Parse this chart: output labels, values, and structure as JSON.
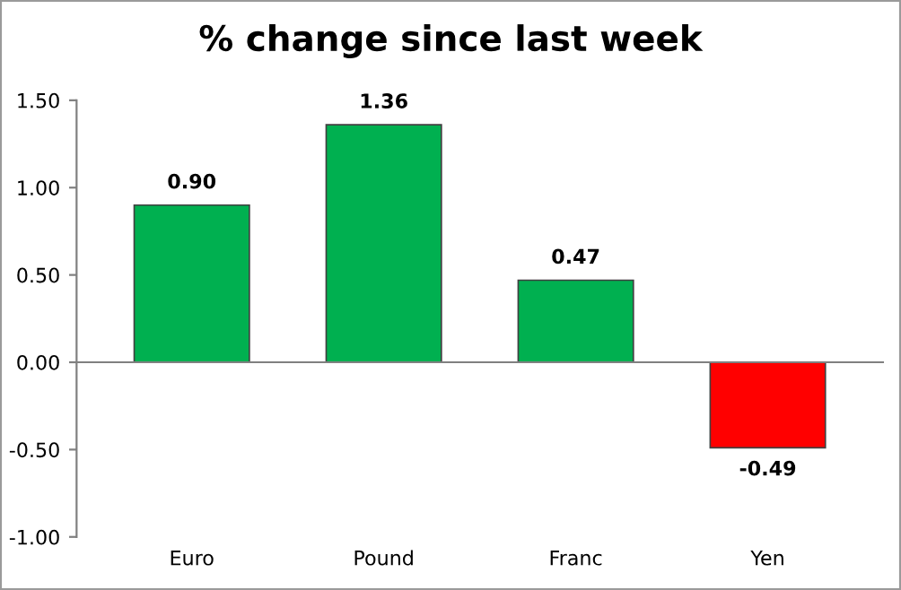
{
  "chart_data": {
    "type": "bar",
    "title": "% change since last week",
    "categories": [
      "Euro",
      "Pound",
      "Franc",
      "Yen"
    ],
    "values": [
      0.9,
      1.36,
      0.47,
      -0.49
    ],
    "colors": [
      "#00b050",
      "#00b050",
      "#00b050",
      "#ff0000"
    ],
    "value_labels": [
      "0.90",
      "1.36",
      "0.47",
      "-0.49"
    ],
    "ylim": [
      -1.0,
      1.5
    ],
    "yticks": [
      {
        "value": -1.0,
        "label": "-1.00"
      },
      {
        "value": -0.5,
        "label": "-0.50"
      },
      {
        "value": 0.0,
        "label": "0.00"
      },
      {
        "value": 0.5,
        "label": "0.50"
      },
      {
        "value": 1.0,
        "label": "1.00"
      },
      {
        "value": 1.5,
        "label": "1.50"
      }
    ],
    "legend": false
  }
}
